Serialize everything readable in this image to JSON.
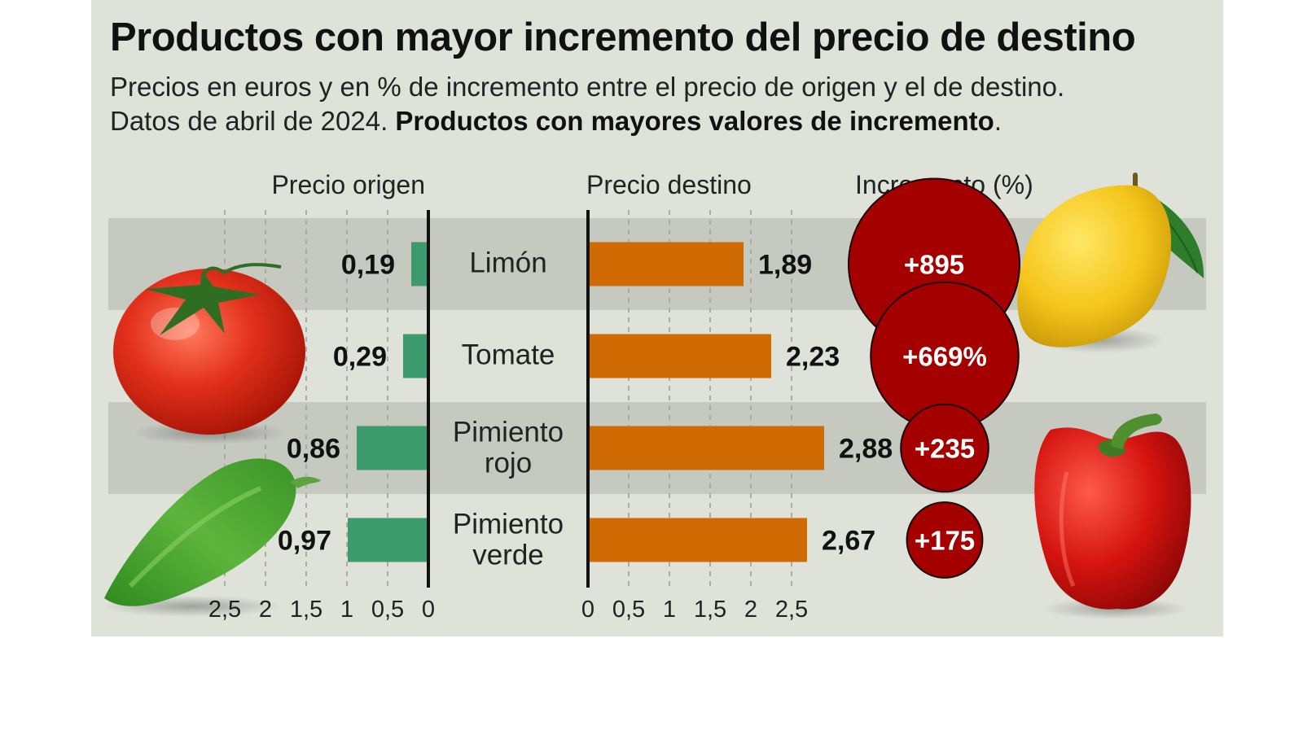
{
  "title": "Productos con mayor incremento del precio de destino",
  "subtitle_line1": "Precios en euros y en % de incremento entre el precio de origen y el de destino.",
  "subtitle_line2_plain": "Datos de abril de 2024. ",
  "subtitle_line2_bold": "Productos con mayores valores de incremento",
  "subtitle_line2_end": ".",
  "colors": {
    "background": "#dee2d9",
    "band": "#c5c9c0",
    "origin_bar": "#3d9a6c",
    "destination_bar": "#d06b04",
    "bubble": "#a50000",
    "grid": "#a9ada5",
    "axis": "#111111"
  },
  "images": {
    "tomato": "tomato-photo",
    "green_pepper": "green-pepper-photo",
    "lemon": "lemon-photo",
    "red_pepper": "red-pepper-photo"
  },
  "chart_data": {
    "type": "bar",
    "headers": {
      "origin": "Precio origen",
      "destination": "Precio destino",
      "increment": "Incremento (%)"
    },
    "categories": [
      {
        "lines": [
          "Limón"
        ]
      },
      {
        "lines": [
          "Tomate"
        ]
      },
      {
        "lines": [
          "Pimiento",
          "rojo"
        ]
      },
      {
        "lines": [
          "Pimiento",
          "verde"
        ]
      }
    ],
    "series": [
      {
        "name": "Precio origen",
        "values": [
          0.19,
          0.29,
          0.86,
          0.97
        ],
        "labels": [
          "0,19",
          "0,29",
          "0,86",
          "0,97"
        ]
      },
      {
        "name": "Precio destino",
        "values": [
          1.89,
          2.23,
          2.88,
          2.67
        ],
        "labels": [
          "1,89",
          "2,23",
          "2,88",
          "2,67"
        ]
      },
      {
        "name": "Incremento (%)",
        "values": [
          895,
          669,
          235,
          175
        ],
        "labels": [
          "+895",
          "+669%",
          "+235",
          "+175"
        ]
      }
    ],
    "origin_axis": {
      "reversed": true,
      "ticks": [
        0,
        0.5,
        1,
        1.5,
        2,
        2.5
      ],
      "tick_labels": [
        "0",
        "0,5",
        "1",
        "1,5",
        "2",
        "2,5"
      ],
      "xlim": [
        0,
        2.6
      ]
    },
    "destination_axis": {
      "ticks": [
        0,
        0.5,
        1,
        1.5,
        2,
        2.5
      ],
      "tick_labels": [
        "0",
        "0,5",
        "1",
        "1,5",
        "2",
        "2,5"
      ],
      "xlim": [
        0,
        2.6
      ]
    },
    "grid": true
  }
}
